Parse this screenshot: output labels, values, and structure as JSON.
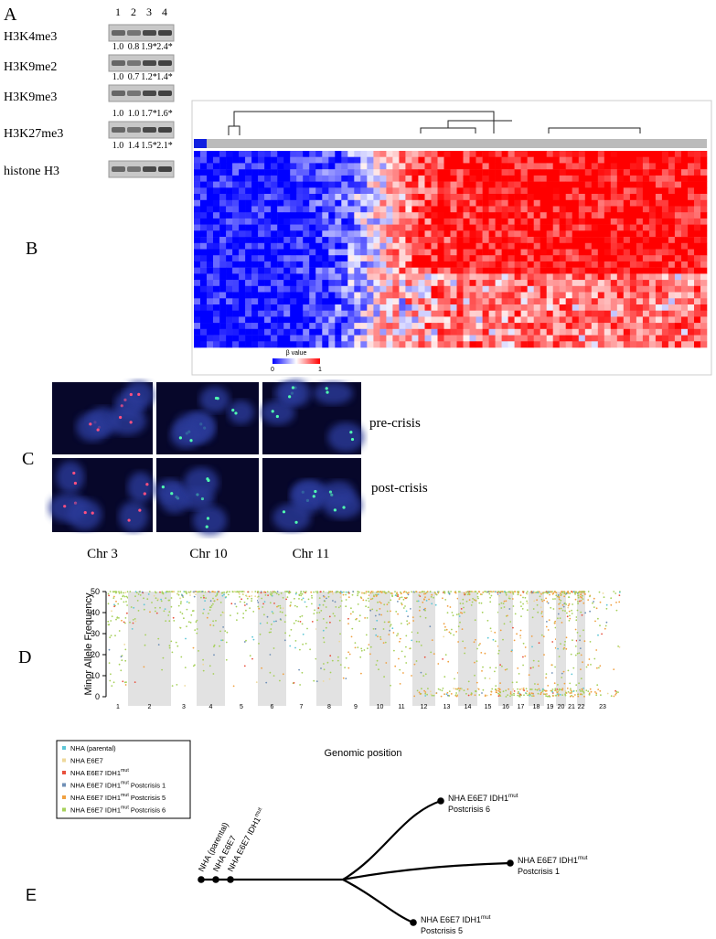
{
  "panel_a": {
    "label": "A",
    "lanes": [
      "1",
      "2",
      "3",
      "4"
    ],
    "rows": [
      {
        "name": "H3K4me3",
        "quant": [
          "1.0",
          "0.8",
          "1.9*",
          "2.4*"
        ]
      },
      {
        "name": "H3K9me2",
        "quant": [
          "1.0",
          "0.7",
          "1.2*",
          "1.4*"
        ]
      },
      {
        "name": "H3K9me3",
        "quant": [
          "1.0",
          "1.0",
          "1.7*",
          "1.6*"
        ]
      },
      {
        "name": "H3K27me3",
        "quant": [
          "1.0",
          "1.4",
          "1.5*",
          "2.1*"
        ]
      },
      {
        "name": "histone H3"
      }
    ]
  },
  "panel_b": {
    "label": "B",
    "legend_title": "β value",
    "legend_min": "0",
    "legend_max": "1"
  },
  "panel_c": {
    "label": "C",
    "rows": [
      "pre-crisis",
      "post-crisis"
    ],
    "columns": [
      "Chr 3",
      "Chr 10",
      "Chr 11"
    ]
  },
  "panel_d": {
    "label": "D",
    "y_label": "Minor Allele Frequency",
    "x_label": "Genomic position",
    "ylim": [
      0,
      50
    ],
    "yticks": [
      0,
      10,
      20,
      30,
      40,
      50
    ],
    "chromosomes": [
      "1",
      "2",
      "3",
      "4",
      "5",
      "6",
      "7",
      "8",
      "9",
      "10",
      "11",
      "12",
      "13",
      "14",
      "15",
      "16",
      "17",
      "18",
      "19",
      "20",
      "21",
      "22",
      "23"
    ],
    "legend": [
      {
        "name": "NHA (parental)",
        "color": "#5cc6d6"
      },
      {
        "name": "NHA E6E7",
        "color": "#eed89a"
      },
      {
        "name": "NHA E6E7 IDH1",
        "sup": "mut",
        "color": "#e8503c"
      },
      {
        "name": "NHA E6E7 IDH1",
        "sup": "mut",
        "suffix": " Postcrisis 1",
        "color": "#6f8fb6"
      },
      {
        "name": "NHA E6E7 IDH1",
        "sup": "mut",
        "suffix": " Postcrisis 5",
        "color": "#f0a040"
      },
      {
        "name": "NHA E6E7 IDH1",
        "sup": "mut",
        "suffix": " Postcrisis 6",
        "color": "#a6d05a"
      }
    ]
  },
  "panel_e": {
    "label": "E",
    "root_leaves": [
      {
        "name": "NHA (parental)"
      },
      {
        "name": "NHA E6E7"
      },
      {
        "name": "NHA E6E7 IDH1",
        "sup": "mut"
      }
    ],
    "branches": [
      {
        "name": "NHA E6E7 IDH1",
        "sup": "mut",
        "line2": "Postcrisis 6"
      },
      {
        "name": "NHA E6E7 IDH1",
        "sup": "mut",
        "line2": "Postcrisis 1"
      },
      {
        "name": "NHA E6E7 IDH1",
        "sup": "mut",
        "line2": "Postcrisis 5"
      }
    ]
  }
}
